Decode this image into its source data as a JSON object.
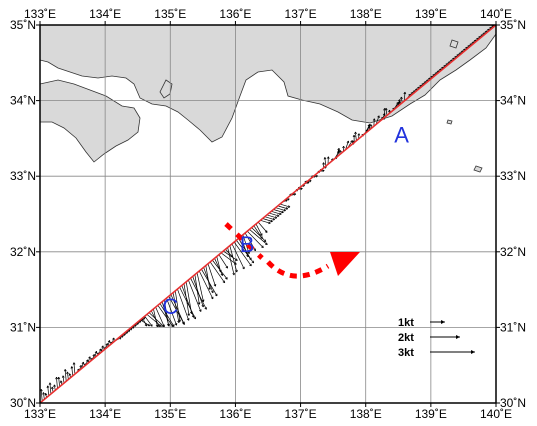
{
  "map": {
    "lon_range": [
      133,
      140
    ],
    "lat_range": [
      30,
      35
    ],
    "lon_labels": [
      "133˚E",
      "134˚E",
      "135˚E",
      "136˚E",
      "137˚E",
      "138˚E",
      "139˚E",
      "140˚E"
    ],
    "lat_labels": [
      "35˚N",
      "34˚N",
      "33˚N",
      "32˚N",
      "31˚N",
      "30˚N"
    ],
    "grid": true,
    "colors": {
      "land": "#d9d9d9",
      "coast": "#333333",
      "track": "#e83030",
      "flow": "#ff0000",
      "vector": "#000000",
      "marker": "#2233dd"
    }
  },
  "track": {
    "start": [
      133.0,
      30.0
    ],
    "end": [
      140.0,
      35.0
    ]
  },
  "markers": [
    {
      "label": "A",
      "lon": 138.55,
      "lat": 33.55
    },
    {
      "label": "B",
      "lon": 136.18,
      "lat": 32.1
    },
    {
      "label": "C",
      "lon": 135.0,
      "lat": 31.28
    }
  ],
  "legend": [
    {
      "label": "1kt",
      "speed": 1
    },
    {
      "label": "2kt",
      "speed": 2
    },
    {
      "label": "3kt",
      "speed": 3
    }
  ]
}
